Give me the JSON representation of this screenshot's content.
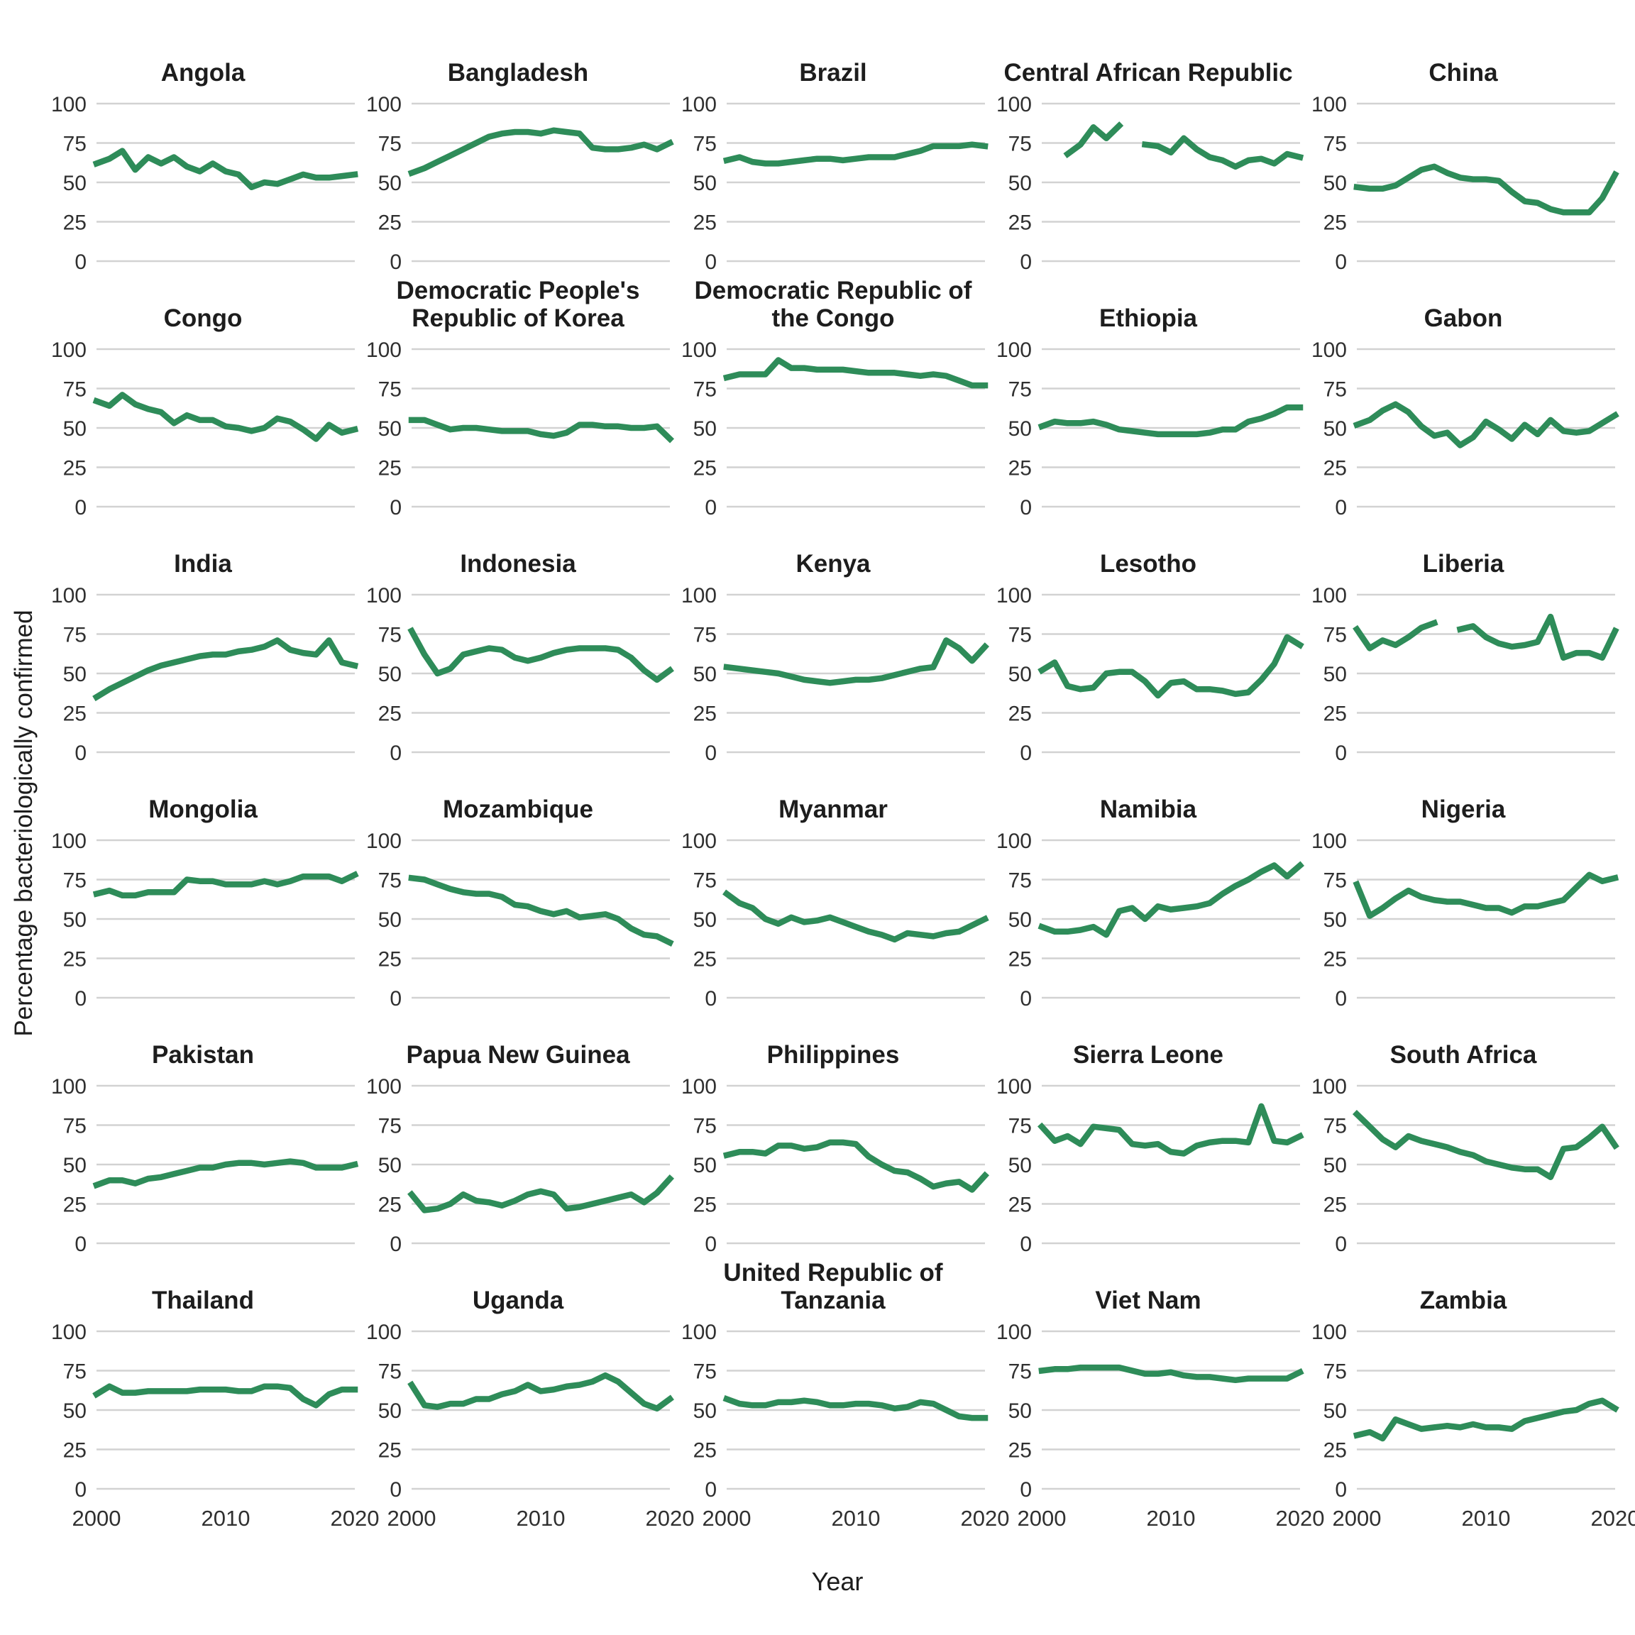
{
  "page": {
    "ylabel": "Percentage bacteriologically confirmed",
    "xlabel": "Year"
  },
  "chart_data": {
    "type": "line",
    "facet_grid": "small multiples, 5 columns x 6 rows",
    "x": [
      2000,
      2001,
      2002,
      2003,
      2004,
      2005,
      2006,
      2007,
      2008,
      2009,
      2010,
      2011,
      2012,
      2013,
      2014,
      2015,
      2016,
      2017,
      2018,
      2019,
      2020
    ],
    "x_ticks": [
      2000,
      2010,
      2020
    ],
    "y_ticks": [
      0,
      25,
      50,
      75,
      100
    ],
    "ylim": [
      0,
      100
    ],
    "grid": "horizontal-only",
    "line_color": "#2e8c59",
    "gridline_color": "#d2d2d2",
    "tick_label_color": "#303030",
    "title_color": "#1d1d1d",
    "ylabel": "Percentage bacteriologically confirmed",
    "xlabel": "Year",
    "series": [
      {
        "name": "Angola",
        "values": [
          62,
          65,
          70,
          58,
          66,
          62,
          66,
          60,
          57,
          62,
          57,
          55,
          47,
          50,
          49,
          52,
          55,
          53,
          53,
          54,
          55
        ]
      },
      {
        "name": "Bangladesh",
        "values": [
          56,
          59,
          63,
          67,
          71,
          75,
          79,
          81,
          82,
          82,
          81,
          83,
          82,
          81,
          72,
          71,
          71,
          72,
          74,
          71,
          75
        ]
      },
      {
        "name": "Brazil",
        "values": [
          64,
          66,
          63,
          62,
          62,
          63,
          64,
          65,
          65,
          64,
          65,
          66,
          66,
          66,
          68,
          70,
          73,
          73,
          73,
          74,
          73
        ]
      },
      {
        "name": "Central African Republic",
        "values": [
          null,
          null,
          68,
          74,
          85,
          78,
          86,
          null,
          74,
          73,
          69,
          78,
          71,
          66,
          64,
          60,
          64,
          65,
          62,
          68,
          66
        ]
      },
      {
        "name": "China",
        "values": [
          47,
          46,
          46,
          48,
          53,
          58,
          60,
          56,
          53,
          52,
          52,
          51,
          44,
          38,
          37,
          33,
          31,
          31,
          31,
          40,
          55
        ]
      },
      {
        "name": "Congo",
        "values": [
          67,
          64,
          71,
          65,
          62,
          60,
          53,
          58,
          55,
          55,
          51,
          50,
          48,
          50,
          56,
          54,
          49,
          43,
          52,
          47,
          49
        ]
      },
      {
        "name": "Democratic People's Republic of Korea",
        "values": [
          55,
          55,
          52,
          49,
          50,
          50,
          49,
          48,
          48,
          48,
          46,
          45,
          47,
          52,
          52,
          51,
          51,
          50,
          50,
          51,
          43
        ]
      },
      {
        "name": "Democratic Republic of the Congo",
        "values": [
          82,
          84,
          84,
          84,
          93,
          88,
          88,
          87,
          87,
          87,
          86,
          85,
          85,
          85,
          84,
          83,
          84,
          83,
          80,
          77,
          77
        ]
      },
      {
        "name": "Ethiopia",
        "values": [
          51,
          54,
          53,
          53,
          54,
          52,
          49,
          48,
          47,
          46,
          46,
          46,
          46,
          47,
          49,
          49,
          54,
          56,
          59,
          63,
          63
        ]
      },
      {
        "name": "Gabon",
        "values": [
          52,
          55,
          61,
          65,
          60,
          51,
          45,
          47,
          39,
          44,
          54,
          49,
          43,
          52,
          46,
          55,
          48,
          47,
          48,
          53,
          58
        ]
      },
      {
        "name": "India",
        "values": [
          35,
          40,
          44,
          48,
          52,
          55,
          57,
          59,
          61,
          62,
          62,
          64,
          65,
          67,
          71,
          65,
          63,
          62,
          71,
          57,
          55
        ]
      },
      {
        "name": "Indonesia",
        "values": [
          77,
          62,
          50,
          53,
          62,
          64,
          66,
          65,
          60,
          58,
          60,
          63,
          65,
          66,
          66,
          66,
          65,
          60,
          52,
          46,
          52
        ]
      },
      {
        "name": "Kenya",
        "values": [
          54,
          53,
          52,
          51,
          50,
          48,
          46,
          45,
          44,
          45,
          46,
          46,
          47,
          49,
          51,
          53,
          54,
          71,
          66,
          58,
          67
        ]
      },
      {
        "name": "Lesotho",
        "values": [
          52,
          57,
          42,
          40,
          41,
          50,
          51,
          51,
          45,
          36,
          44,
          45,
          40,
          40,
          39,
          37,
          38,
          46,
          56,
          73,
          68
        ]
      },
      {
        "name": "Liberia",
        "values": [
          78,
          66,
          71,
          68,
          73,
          79,
          82,
          null,
          78,
          80,
          73,
          69,
          67,
          68,
          70,
          86,
          60,
          63,
          63,
          60,
          77
        ]
      },
      {
        "name": "Mongolia",
        "values": [
          66,
          68,
          65,
          65,
          67,
          67,
          67,
          75,
          74,
          74,
          72,
          72,
          72,
          74,
          72,
          74,
          77,
          77,
          77,
          74,
          78
        ]
      },
      {
        "name": "Mozambique",
        "values": [
          76,
          75,
          72,
          69,
          67,
          66,
          66,
          64,
          59,
          58,
          55,
          53,
          55,
          51,
          52,
          53,
          50,
          44,
          40,
          39,
          35
        ]
      },
      {
        "name": "Myanmar",
        "values": [
          66,
          60,
          57,
          50,
          47,
          51,
          48,
          49,
          51,
          48,
          45,
          42,
          40,
          37,
          41,
          40,
          39,
          41,
          42,
          46,
          50
        ]
      },
      {
        "name": "Namibia",
        "values": [
          45,
          42,
          42,
          43,
          45,
          40,
          55,
          57,
          50,
          58,
          56,
          57,
          58,
          60,
          66,
          71,
          75,
          80,
          84,
          77,
          84
        ]
      },
      {
        "name": "Nigeria",
        "values": [
          72,
          52,
          57,
          63,
          68,
          64,
          62,
          61,
          61,
          59,
          57,
          57,
          54,
          58,
          58,
          60,
          62,
          70,
          78,
          74,
          76
        ]
      },
      {
        "name": "Pakistan",
        "values": [
          37,
          40,
          40,
          38,
          41,
          42,
          44,
          46,
          48,
          48,
          50,
          51,
          51,
          50,
          51,
          52,
          51,
          48,
          48,
          48,
          50
        ]
      },
      {
        "name": "Papua New Guinea",
        "values": [
          31,
          21,
          22,
          25,
          31,
          27,
          26,
          24,
          27,
          31,
          33,
          31,
          22,
          23,
          25,
          27,
          29,
          31,
          26,
          32,
          41
        ]
      },
      {
        "name": "Philippines",
        "values": [
          56,
          58,
          58,
          57,
          62,
          62,
          60,
          61,
          64,
          64,
          63,
          55,
          50,
          46,
          45,
          41,
          36,
          38,
          39,
          34,
          43
        ]
      },
      {
        "name": "Sierra Leone",
        "values": [
          74,
          65,
          68,
          63,
          74,
          73,
          72,
          63,
          62,
          63,
          58,
          57,
          62,
          64,
          65,
          65,
          64,
          87,
          65,
          64,
          68
        ]
      },
      {
        "name": "South Africa",
        "values": [
          82,
          74,
          66,
          61,
          68,
          65,
          63,
          61,
          58,
          56,
          52,
          50,
          48,
          47,
          47,
          42,
          60,
          61,
          67,
          74,
          62
        ]
      },
      {
        "name": "Thailand",
        "values": [
          60,
          65,
          61,
          61,
          62,
          62,
          62,
          62,
          63,
          63,
          63,
          62,
          62,
          65,
          65,
          64,
          57,
          53,
          60,
          63,
          63
        ]
      },
      {
        "name": "Uganda",
        "values": [
          66,
          53,
          52,
          54,
          54,
          57,
          57,
          60,
          62,
          66,
          62,
          63,
          65,
          66,
          68,
          72,
          68,
          61,
          54,
          51,
          57
        ]
      },
      {
        "name": "United Republic of Tanzania",
        "values": [
          57,
          54,
          53,
          53,
          55,
          55,
          56,
          55,
          53,
          53,
          54,
          54,
          53,
          51,
          52,
          55,
          54,
          50,
          46,
          45,
          45
        ]
      },
      {
        "name": "Viet Nam",
        "values": [
          75,
          76,
          76,
          77,
          77,
          77,
          77,
          75,
          73,
          73,
          74,
          72,
          71,
          71,
          70,
          69,
          70,
          70,
          70,
          70,
          74
        ]
      },
      {
        "name": "Zambia",
        "values": [
          34,
          36,
          32,
          44,
          41,
          38,
          39,
          40,
          39,
          41,
          39,
          39,
          38,
          43,
          45,
          47,
          49,
          50,
          54,
          56,
          51
        ]
      }
    ]
  }
}
